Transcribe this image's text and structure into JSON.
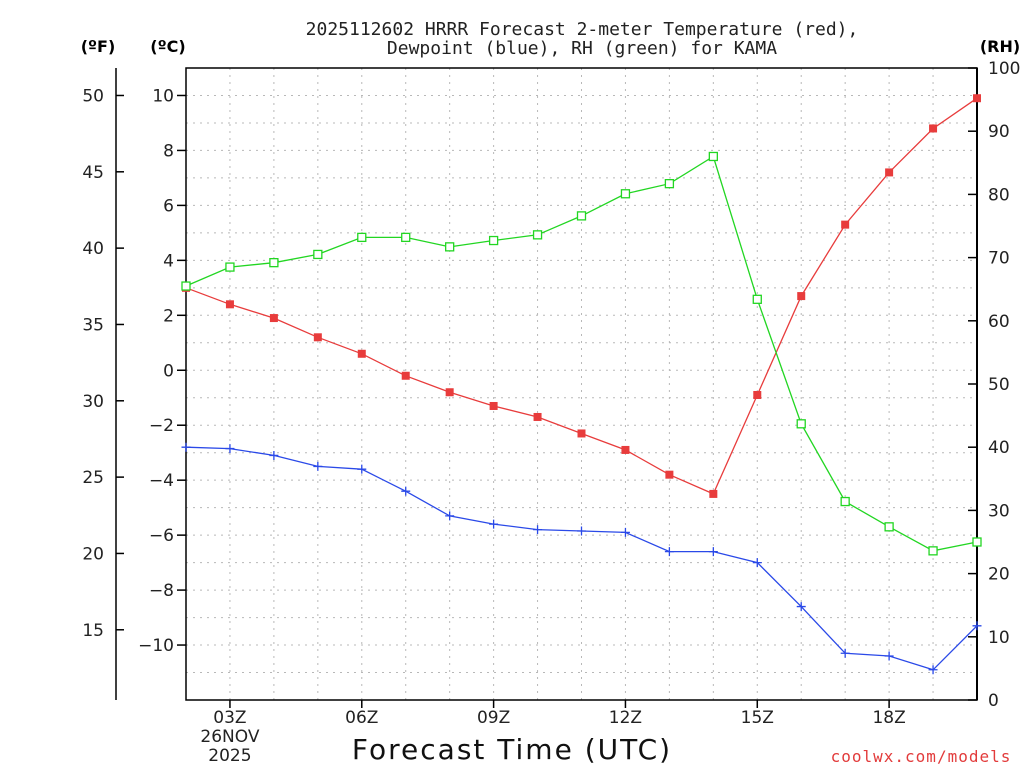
{
  "chart_data": {
    "type": "line",
    "title": [
      "2025112602 HRRR Forecast 2-meter Temperature (red),",
      "Dewpoint (blue), RH (green) for KAMA"
    ],
    "xlabel": "Forecast Time (UTC)",
    "watermark": "coolwx.com/models",
    "units": {
      "fahrenheit": "(ºF)",
      "celsius": "(ºC)",
      "rh": "(RH)"
    },
    "x_hours": [
      2,
      3,
      4,
      5,
      6,
      7,
      8,
      9,
      10,
      11,
      12,
      13,
      14,
      15,
      16,
      17,
      18,
      19,
      20
    ],
    "xlim": [
      2,
      20
    ],
    "x_ticks": [
      {
        "hour": 3,
        "label": "03Z",
        "date_line1": "26NOV",
        "date_line2": "2025"
      },
      {
        "hour": 6,
        "label": "06Z"
      },
      {
        "hour": 9,
        "label": "09Z"
      },
      {
        "hour": 12,
        "label": "12Z"
      },
      {
        "hour": 15,
        "label": "15Z"
      },
      {
        "hour": 18,
        "label": "18Z"
      }
    ],
    "celsius_axis": {
      "ylim": [
        -12,
        11
      ],
      "ticks": [
        "10",
        "8",
        "6",
        "4",
        "2",
        "0",
        "−2",
        "−4",
        "−6",
        "−8",
        "−10"
      ],
      "tick_values": [
        10,
        8,
        6,
        4,
        2,
        0,
        -2,
        -4,
        -6,
        -8,
        -10
      ]
    },
    "fahrenheit_axis": {
      "ticks": [
        "50",
        "45",
        "40",
        "35",
        "30",
        "25",
        "20",
        "15"
      ],
      "tick_values": [
        50,
        45,
        40,
        35,
        30,
        25,
        20,
        15
      ]
    },
    "rh_axis": {
      "ylim": [
        0,
        100
      ],
      "ticks": [
        "100",
        "90",
        "80",
        "70",
        "60",
        "50",
        "40",
        "30",
        "20",
        "10",
        "0"
      ],
      "tick_values": [
        100,
        90,
        80,
        70,
        60,
        50,
        40,
        30,
        20,
        10,
        0
      ]
    },
    "series": [
      {
        "name": "Temperature",
        "color": "#e83c3c",
        "marker": "filled-square",
        "axis": "celsius",
        "values": [
          3.0,
          2.4,
          1.9,
          1.2,
          0.6,
          -0.2,
          -0.8,
          -1.3,
          -1.7,
          -2.3,
          -2.9,
          -3.8,
          -4.5,
          -0.9,
          2.7,
          5.3,
          7.2,
          8.8,
          9.9
        ]
      },
      {
        "name": "Dewpoint",
        "color": "#2a49e8",
        "marker": "plus",
        "axis": "celsius",
        "values": [
          -2.8,
          -2.85,
          -3.1,
          -3.5,
          -3.6,
          -4.4,
          -5.3,
          -5.6,
          -5.8,
          -5.85,
          -5.9,
          -6.6,
          -6.6,
          -7.0,
          -8.6,
          -10.3,
          -10.4,
          -10.9,
          -9.3
        ]
      },
      {
        "name": "RH",
        "color": "#22d622",
        "marker": "open-square",
        "axis": "rh",
        "values": [
          65.5,
          68.5,
          69.2,
          70.5,
          73.2,
          73.2,
          71.7,
          72.7,
          73.6,
          76.6,
          80.1,
          81.7,
          86.0,
          63.4,
          43.7,
          31.4,
          27.4,
          23.6,
          25.0
        ]
      }
    ]
  }
}
